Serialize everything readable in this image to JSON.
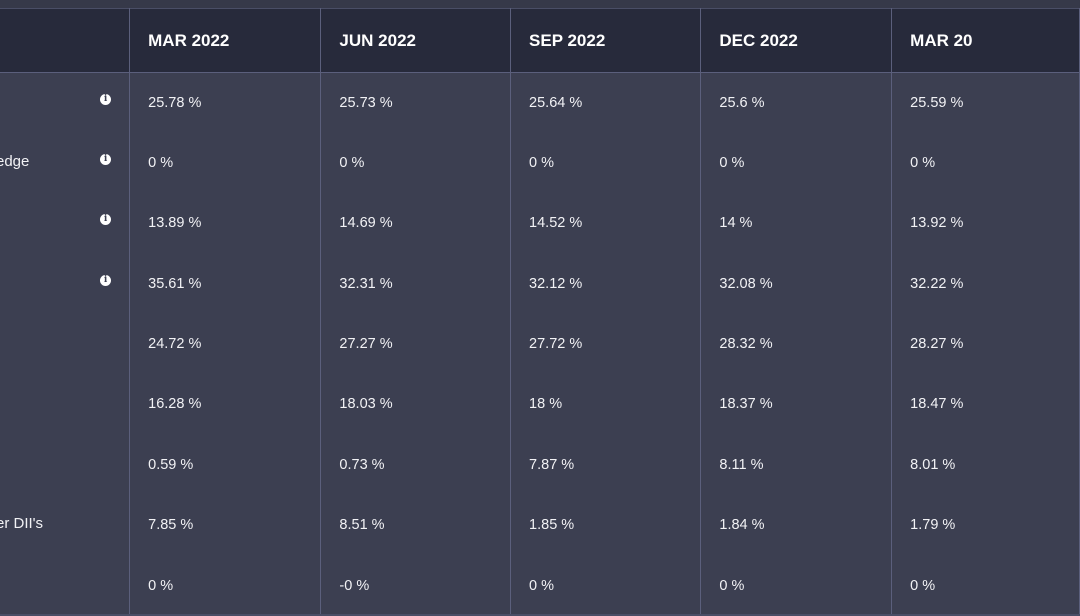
{
  "columns": [
    "MAR 2022",
    "JUN 2022",
    "SEP 2022",
    "DEC 2022",
    "MAR 20"
  ],
  "rows": [
    {
      "label": "",
      "info": true,
      "values": [
        "25.78 %",
        "25.73 %",
        "25.64 %",
        "25.6 %",
        "25.59 %"
      ]
    },
    {
      "label": "edge",
      "info": true,
      "values": [
        "0 %",
        "0 %",
        "0 %",
        "0 %",
        "0 %"
      ]
    },
    {
      "label": "",
      "info": true,
      "values": [
        "13.89 %",
        "14.69 %",
        "14.52 %",
        "14 %",
        "13.92 %"
      ]
    },
    {
      "label": "",
      "info": true,
      "values": [
        "35.61 %",
        "32.31 %",
        "32.12 %",
        "32.08 %",
        "32.22 %"
      ]
    },
    {
      "label": "",
      "info": false,
      "values": [
        "24.72 %",
        "27.27 %",
        "27.72 %",
        "28.32 %",
        "28.27 %"
      ]
    },
    {
      "label": "",
      "info": false,
      "values": [
        "16.28 %",
        "18.03 %",
        "18 %",
        "18.37 %",
        "18.47 %"
      ]
    },
    {
      "label": "",
      "info": false,
      "values": [
        "0.59 %",
        "0.73 %",
        "7.87 %",
        "8.11 %",
        "8.01 %"
      ]
    },
    {
      "label": "er DII's",
      "info": false,
      "values": [
        "7.85 %",
        "8.51 %",
        "1.85 %",
        "1.84 %",
        "1.79 %"
      ]
    },
    {
      "label": "",
      "info": false,
      "values": [
        "0 %",
        "-0 %",
        "0 %",
        "0 %",
        "0 %"
      ]
    }
  ],
  "icons": {
    "info": "info-icon"
  },
  "colors": {
    "background": "#3c3f51",
    "header": "#272a3b",
    "divider": "#5b5f7c",
    "text": "#f2f2f5"
  }
}
